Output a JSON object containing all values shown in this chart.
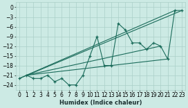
{
  "xlabel": "Humidex (Indice chaleur)",
  "bg_color": "#cceae4",
  "grid_color": "#aacfc8",
  "line_color": "#1a6b5a",
  "xlim": [
    -0.5,
    23.5
  ],
  "ylim": [
    -25.5,
    1.5
  ],
  "xticks": [
    0,
    1,
    2,
    3,
    4,
    5,
    6,
    7,
    8,
    9,
    10,
    11,
    12,
    13,
    14,
    15,
    16,
    17,
    18,
    19,
    20,
    21,
    22,
    23
  ],
  "yticks": [
    0,
    -3,
    -6,
    -9,
    -12,
    -15,
    -18,
    -21,
    -24
  ],
  "series": [
    [
      0,
      -22
    ],
    [
      1,
      -21
    ],
    [
      2,
      -22
    ],
    [
      3,
      -22
    ],
    [
      4,
      -21
    ],
    [
      5,
      -23
    ],
    [
      6,
      -22
    ],
    [
      7,
      -24
    ],
    [
      8,
      -24
    ],
    [
      9,
      -21
    ],
    [
      10,
      -15
    ],
    [
      11,
      -9
    ],
    [
      12,
      -18
    ],
    [
      13,
      -18
    ],
    [
      14,
      -5
    ],
    [
      15,
      -7
    ],
    [
      16,
      -11
    ],
    [
      17,
      -11
    ],
    [
      18,
      -13
    ],
    [
      19,
      -11
    ],
    [
      20,
      -12
    ],
    [
      21,
      -16
    ],
    [
      22,
      -1
    ],
    [
      23,
      -1
    ]
  ],
  "ref_lines": [
    [
      [
        0,
        -22
      ],
      [
        23,
        -1
      ]
    ],
    [
      [
        1,
        -21
      ],
      [
        22,
        -1
      ]
    ],
    [
      [
        1,
        -21
      ],
      [
        20,
        -12
      ]
    ],
    [
      [
        1,
        -21
      ],
      [
        21,
        -16
      ]
    ]
  ]
}
